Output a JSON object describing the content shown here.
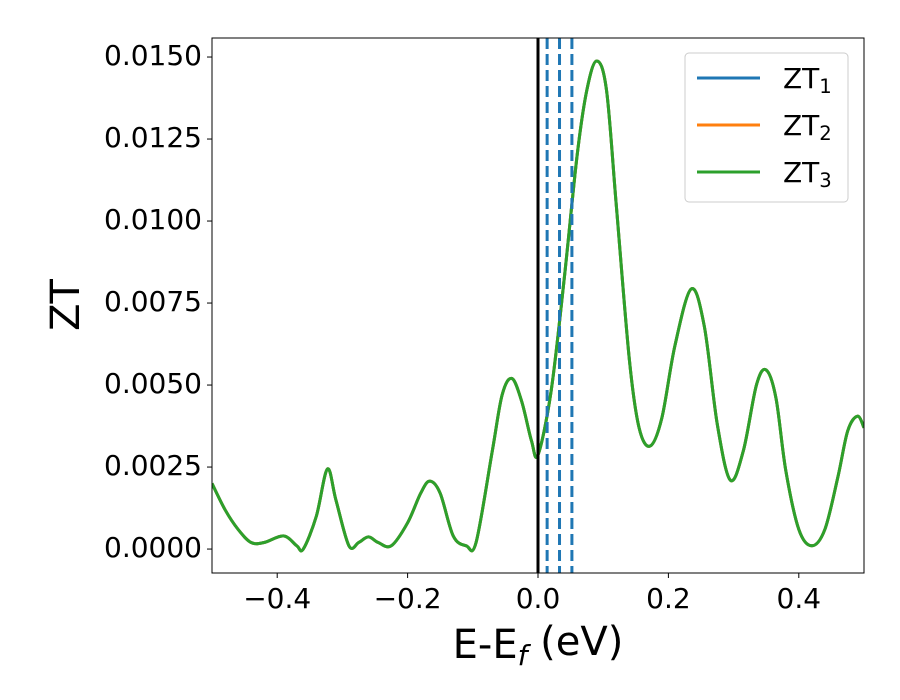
{
  "chart_data": {
    "type": "line",
    "xlabel": "E-Ef (eV)",
    "ylabel": "ZT",
    "xlim": [
      -0.5,
      0.5
    ],
    "ylim": [
      -0.00073,
      0.01558
    ],
    "xticks": [
      {
        "value": -0.4,
        "label": "−0.4"
      },
      {
        "value": -0.2,
        "label": "−0.2"
      },
      {
        "value": 0.0,
        "label": "0.0"
      },
      0.2,
      0.4
    ],
    "yticks": [
      {
        "value": 0,
        "label": "0.0000"
      },
      {
        "value": 0.0025,
        "label": "0.0025"
      },
      {
        "value": 0.005,
        "label": "0.0050"
      },
      {
        "value": 0.0075,
        "label": "0.0075"
      },
      {
        "value": 0.01,
        "label": "0.0100"
      },
      {
        "value": 0.0125,
        "label": "0.0125"
      },
      {
        "value": 0.015,
        "label": "0.0150"
      }
    ],
    "legend": "upper right",
    "grid": false,
    "vlines": [
      {
        "x": 0,
        "color": "#000000",
        "dashed": false
      },
      {
        "x": 0.014,
        "color": "#1f77b4",
        "dashed": true
      },
      {
        "x": 0.033,
        "color": "#1f77b4",
        "dashed": true
      },
      {
        "x": 0.052,
        "color": "#1f77b4",
        "dashed": true
      }
    ],
    "x": [
      -0.5,
      -0.48,
      -0.46,
      -0.44,
      -0.42,
      -0.39,
      -0.37,
      -0.36,
      -0.34,
      -0.323,
      -0.31,
      -0.29,
      -0.275,
      -0.26,
      -0.245,
      -0.225,
      -0.2,
      -0.18,
      -0.166,
      -0.15,
      -0.13,
      -0.11,
      -0.095,
      -0.07,
      -0.055,
      -0.04,
      -0.025,
      -0.01,
      0.0,
      0.02,
      0.04,
      0.06,
      0.075,
      0.09,
      0.105,
      0.12,
      0.14,
      0.155,
      0.172,
      0.19,
      0.21,
      0.235,
      0.255,
      0.275,
      0.295,
      0.315,
      0.335,
      0.35,
      0.365,
      0.38,
      0.4,
      0.42,
      0.44,
      0.46,
      0.475,
      0.49,
      0.5
    ],
    "series": [
      {
        "name": "ZT1",
        "color": "#1f77b4",
        "values": [
          0.002,
          0.0012,
          0.0006,
          0.0002,
          0.0002,
          0.0004,
          0.0001,
          0.0,
          0.001,
          0.00244,
          0.0015,
          0.0001,
          0.0002,
          0.00037,
          0.0002,
          0.0001,
          0.0008,
          0.0017,
          0.00207,
          0.0017,
          0.0004,
          0.0001,
          0.0002,
          0.003,
          0.0047,
          0.0052,
          0.0045,
          0.0033,
          0.00287,
          0.0048,
          0.0082,
          0.012,
          0.014,
          0.01488,
          0.014,
          0.0105,
          0.0058,
          0.0037,
          0.00314,
          0.004,
          0.0062,
          0.00793,
          0.0068,
          0.0038,
          0.0021,
          0.003,
          0.005,
          0.00546,
          0.0046,
          0.0024,
          0.0006,
          0.0001,
          0.0006,
          0.0022,
          0.0036,
          0.00405,
          0.0037
        ]
      },
      {
        "name": "ZT2",
        "color": "#ff7f0e",
        "values": [
          0.002,
          0.0012,
          0.0006,
          0.0002,
          0.0002,
          0.0004,
          0.0001,
          0.0,
          0.001,
          0.00244,
          0.0015,
          0.0001,
          0.0002,
          0.00037,
          0.0002,
          0.0001,
          0.0008,
          0.0017,
          0.00207,
          0.0017,
          0.0004,
          0.0001,
          0.0002,
          0.003,
          0.0047,
          0.0052,
          0.0045,
          0.0033,
          0.00287,
          0.0048,
          0.0082,
          0.012,
          0.014,
          0.01488,
          0.014,
          0.0105,
          0.0058,
          0.0037,
          0.00314,
          0.004,
          0.0062,
          0.00793,
          0.0068,
          0.0038,
          0.0021,
          0.003,
          0.005,
          0.00546,
          0.0046,
          0.0024,
          0.0006,
          0.0001,
          0.0006,
          0.0022,
          0.0036,
          0.00405,
          0.0037
        ]
      },
      {
        "name": "ZT3",
        "color": "#2ca02c",
        "values": [
          0.002,
          0.0012,
          0.0006,
          0.0002,
          0.0002,
          0.0004,
          0.0001,
          0.0,
          0.001,
          0.00244,
          0.0015,
          0.0001,
          0.0002,
          0.00037,
          0.0002,
          0.0001,
          0.0008,
          0.0017,
          0.00207,
          0.0017,
          0.0004,
          0.0001,
          0.0002,
          0.003,
          0.0047,
          0.0052,
          0.0045,
          0.0033,
          0.00287,
          0.0048,
          0.0082,
          0.012,
          0.014,
          0.01488,
          0.014,
          0.0105,
          0.0058,
          0.0037,
          0.00314,
          0.004,
          0.0062,
          0.00793,
          0.0068,
          0.0038,
          0.0021,
          0.003,
          0.005,
          0.00546,
          0.0046,
          0.0024,
          0.0006,
          0.0001,
          0.0006,
          0.0022,
          0.0036,
          0.00405,
          0.0037
        ]
      }
    ]
  }
}
